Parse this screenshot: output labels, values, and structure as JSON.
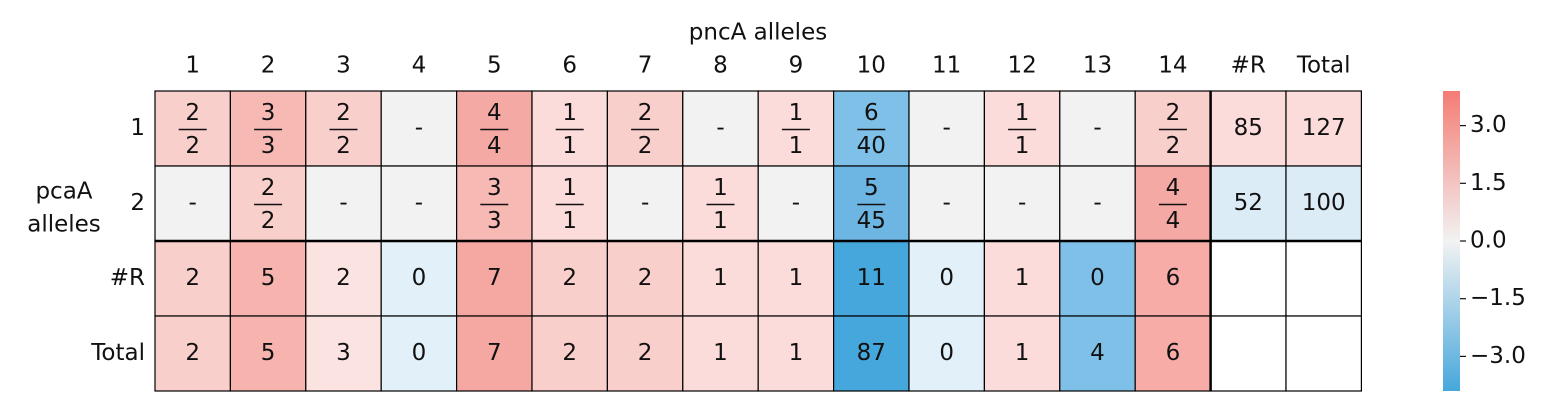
{
  "table": {
    "title": "pncA alleles",
    "row_title": [
      "pcaA",
      "alleles"
    ],
    "columns": [
      "1",
      "2",
      "3",
      "4",
      "5",
      "6",
      "7",
      "8",
      "9",
      "10",
      "11",
      "12",
      "13",
      "14",
      "#R",
      "Total"
    ],
    "rows": [
      "1",
      "2",
      "#R",
      "Total"
    ],
    "cells": [
      [
        {
          "num": 2,
          "den": 2,
          "color": "#f9cfcc"
        },
        {
          "num": 3,
          "den": 3,
          "color": "#f7b9b4"
        },
        {
          "num": 2,
          "den": 2,
          "color": "#f9cfcc"
        },
        {
          "text": "-",
          "color": "#f2f2f2"
        },
        {
          "num": 4,
          "den": 4,
          "color": "#f5a9a4"
        },
        {
          "num": 1,
          "den": 1,
          "color": "#fbdcdb"
        },
        {
          "num": 2,
          "den": 2,
          "color": "#f9cfcc"
        },
        {
          "text": "-",
          "color": "#f2f2f2"
        },
        {
          "num": 1,
          "den": 1,
          "color": "#fbdcdb"
        },
        {
          "num": 6,
          "den": 40,
          "color": "#7ec0e7"
        },
        {
          "text": "-",
          "color": "#f2f2f2"
        },
        {
          "num": 1,
          "den": 1,
          "color": "#fbdcdb"
        },
        {
          "text": "-",
          "color": "#f2f2f2"
        },
        {
          "num": 2,
          "den": 2,
          "color": "#f9cfcc"
        },
        {
          "value": 85,
          "color": "#fbdcdb"
        },
        {
          "value": 127,
          "color": "#fbdcdb"
        }
      ],
      [
        {
          "text": "-",
          "color": "#f2f2f2"
        },
        {
          "num": 2,
          "den": 2,
          "color": "#f9cfcc"
        },
        {
          "text": "-",
          "color": "#f2f2f2"
        },
        {
          "text": "-",
          "color": "#f2f2f2"
        },
        {
          "num": 3,
          "den": 3,
          "color": "#f7b9b4"
        },
        {
          "num": 1,
          "den": 1,
          "color": "#fbdcdb"
        },
        {
          "text": "-",
          "color": "#f2f2f2"
        },
        {
          "num": 1,
          "den": 1,
          "color": "#fbdcdb"
        },
        {
          "text": "-",
          "color": "#f2f2f2"
        },
        {
          "num": 5,
          "den": 45,
          "color": "#6db5e2"
        },
        {
          "text": "-",
          "color": "#f2f2f2"
        },
        {
          "text": "-",
          "color": "#f2f2f2"
        },
        {
          "text": "-",
          "color": "#f2f2f2"
        },
        {
          "num": 4,
          "den": 4,
          "color": "#f5a9a4"
        },
        {
          "value": 52,
          "color": "#dcecf7"
        },
        {
          "value": 100,
          "color": "#dcecf7"
        }
      ],
      [
        {
          "value": 2,
          "color": "#f9cfcc"
        },
        {
          "value": 5,
          "color": "#f7b3ae"
        },
        {
          "value": 2,
          "color": "#fbe3e2"
        },
        {
          "value": 0,
          "color": "#e1f0f9"
        },
        {
          "value": 7,
          "color": "#f5a7a2"
        },
        {
          "value": 2,
          "color": "#f9cfcc"
        },
        {
          "value": 2,
          "color": "#f9cfcc"
        },
        {
          "value": 1,
          "color": "#fbdcdb"
        },
        {
          "value": 1,
          "color": "#fbdcdb"
        },
        {
          "value": 11,
          "color": "#46a7dc"
        },
        {
          "value": 0,
          "color": "#e1f0f9"
        },
        {
          "value": 1,
          "color": "#fbdcdb"
        },
        {
          "value": 0,
          "color": "#7ec0e7"
        },
        {
          "value": 6,
          "color": "#f7aca7"
        },
        {
          "color": "#ffffff"
        },
        {
          "color": "#ffffff"
        }
      ],
      [
        {
          "value": 2,
          "color": "#f9cfcc"
        },
        {
          "value": 5,
          "color": "#f7b3ae"
        },
        {
          "value": 3,
          "color": "#fbe3e2"
        },
        {
          "value": 0,
          "color": "#e1f0f9"
        },
        {
          "value": 7,
          "color": "#f5a7a2"
        },
        {
          "value": 2,
          "color": "#f9cfcc"
        },
        {
          "value": 2,
          "color": "#f9cfcc"
        },
        {
          "value": 1,
          "color": "#fbdcdb"
        },
        {
          "value": 1,
          "color": "#fbdcdb"
        },
        {
          "value": 87,
          "color": "#46a7dc"
        },
        {
          "value": 0,
          "color": "#e1f0f9"
        },
        {
          "value": 1,
          "color": "#fbdcdb"
        },
        {
          "value": 4,
          "color": "#7ec0e7"
        },
        {
          "value": 6,
          "color": "#f7aca7"
        },
        {
          "color": "#ffffff"
        },
        {
          "color": "#ffffff"
        }
      ]
    ],
    "colorbar": {
      "lim": [
        -3.9,
        3.9
      ],
      "colors": [
        "#46a7dc",
        "#f2f2f2",
        "#f47c74"
      ],
      "ticks": [
        {
          "value": 3,
          "label": "3.0"
        },
        {
          "value": 1.5,
          "label": "1.5"
        },
        {
          "value": 0,
          "label": "0.0"
        },
        {
          "value": -1.5,
          "label": "−1.5"
        },
        {
          "value": -3,
          "label": "−3.0"
        }
      ]
    }
  }
}
